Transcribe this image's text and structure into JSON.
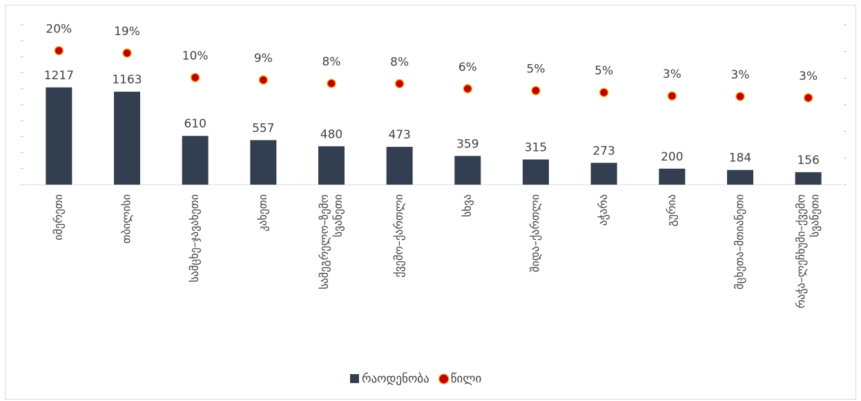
{
  "chart_data": {
    "type": "bar",
    "categories": [
      "იმერეთი",
      "თბილისი",
      "სამცხე–ჯავახეთი",
      "კახეთი",
      "სამეგრელო–ზემო სვანეთი",
      "ქვემო–ქართლი",
      "სხვა",
      "შიდა–ქართლი",
      "აჭარა",
      "გურია",
      "მცხეთა–მთიანეთი",
      "რაჭა–ლეჩხუმი–ქვემო სვანეთი"
    ],
    "series": [
      {
        "name": "რაოდენობა",
        "type": "bar",
        "color": "#333f50",
        "values": [
          1217,
          1163,
          610,
          557,
          480,
          473,
          359,
          315,
          273,
          200,
          184,
          156
        ]
      },
      {
        "name": "წილი",
        "type": "scatter",
        "axis": "y2",
        "color": "#c00000",
        "edge_color": "#f5a623",
        "values": [
          20.3,
          19.4,
          10.2,
          9.3,
          8.0,
          7.9,
          6.0,
          5.3,
          4.6,
          3.3,
          3.1,
          2.6
        ],
        "value_labels": [
          "20%",
          "19%",
          "10%",
          "9%",
          "8%",
          "8%",
          "6%",
          "5%",
          "5%",
          "3%",
          "3%",
          "3%"
        ]
      }
    ],
    "ylim": [
      0,
      2000
    ],
    "yticks": [
      0,
      200,
      400,
      600,
      800,
      1000,
      1200,
      1400,
      1600,
      1800,
      2000
    ],
    "y2lim": [
      -30,
      30
    ],
    "y2ticks": [
      -30,
      -20,
      -10,
      0,
      10,
      20,
      30
    ],
    "legend": "bottom"
  }
}
